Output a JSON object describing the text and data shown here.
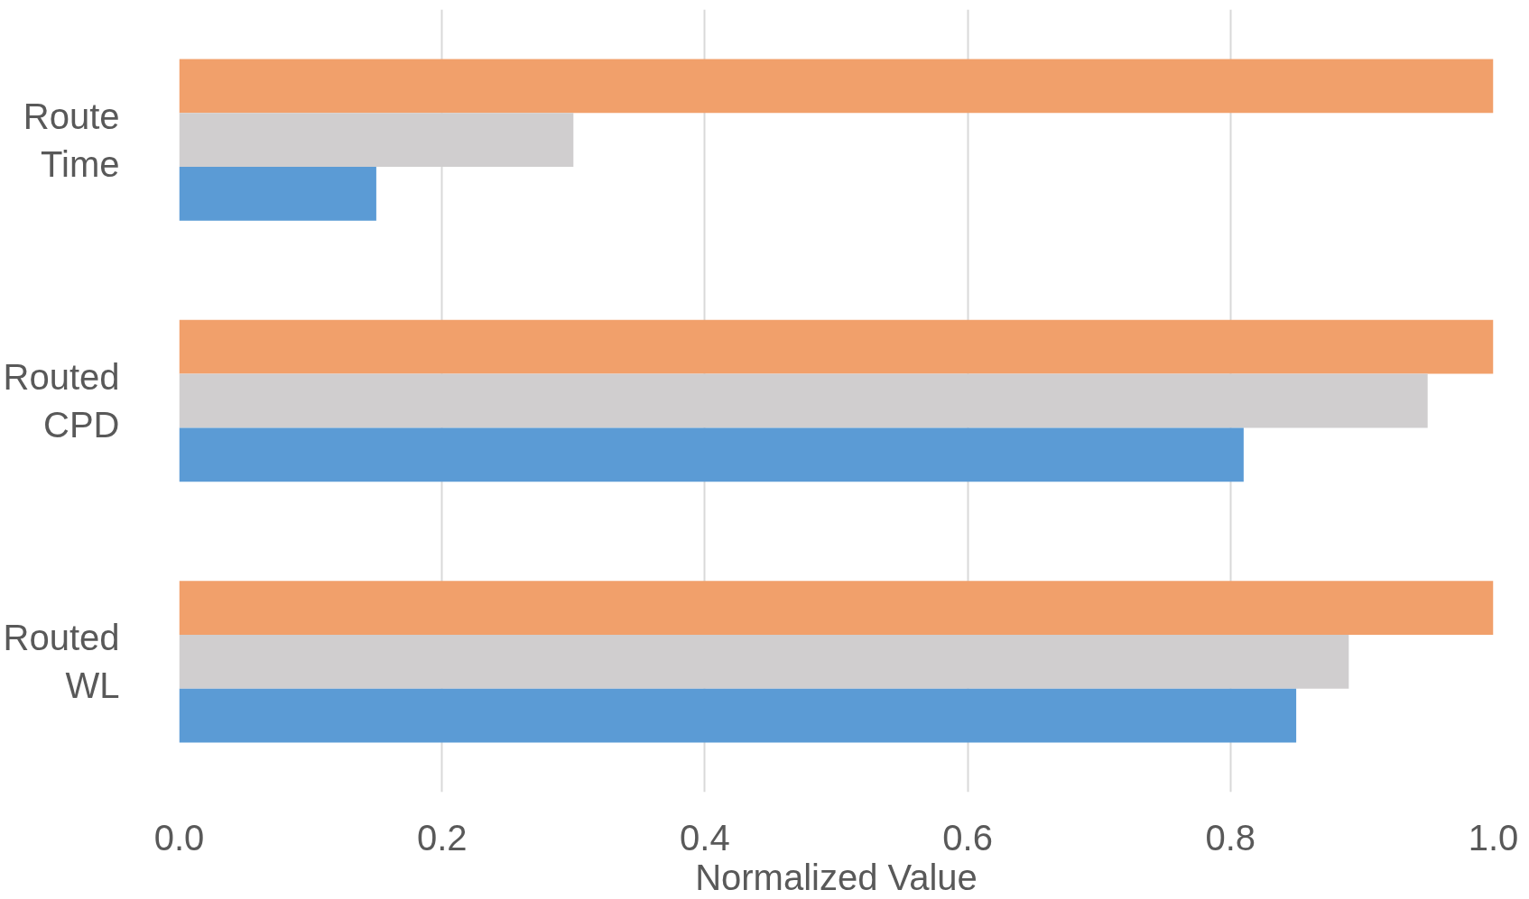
{
  "chart_data": {
    "type": "bar",
    "orientation": "horizontal",
    "xlabel": "Normalized Value",
    "categories": [
      "Route Time",
      "Routed CPD",
      "Routed WL"
    ],
    "series": [
      {
        "color": "#f1a06b",
        "values": [
          1.0,
          1.0,
          1.0
        ]
      },
      {
        "color": "#d0cecf",
        "values": [
          0.3,
          0.95,
          0.89
        ]
      },
      {
        "color": "#5b9bd5",
        "values": [
          0.15,
          0.81,
          0.85
        ]
      }
    ],
    "xlim": [
      0,
      1.0
    ],
    "xticks": [
      {
        "value": 0,
        "label": "0.0"
      },
      0.2,
      0.4,
      0.6,
      0.8,
      {
        "value": 1.0,
        "label": "1.0"
      }
    ],
    "grid": "x"
  }
}
